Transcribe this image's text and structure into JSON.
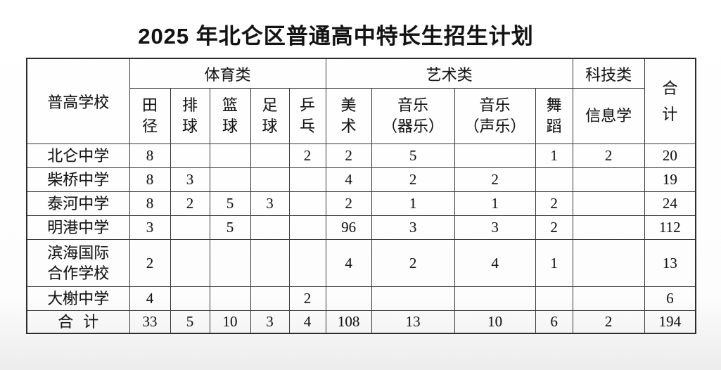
{
  "title": "2025 年北仑区普通高中特长生招生计划",
  "table": {
    "school_header": "普高学校",
    "total_header": "合\n计",
    "groups": [
      {
        "label": "体育类",
        "cols": [
          "田\n径",
          "排\n球",
          "篮\n球",
          "足\n球",
          "乒\n乓"
        ]
      },
      {
        "label": "艺术类",
        "cols": [
          "美\n术",
          "音乐\n（器乐）",
          "音乐\n（声乐）",
          "舞\n蹈"
        ]
      },
      {
        "label": "科技类",
        "cols": [
          "信息学"
        ]
      }
    ],
    "rows": [
      {
        "school": "北仑中学",
        "values": [
          "8",
          "",
          "",
          "",
          "2",
          "2",
          "5",
          "",
          "1",
          "2"
        ],
        "total": "20"
      },
      {
        "school": "柴桥中学",
        "values": [
          "8",
          "3",
          "",
          "",
          "",
          "4",
          "2",
          "2",
          "",
          ""
        ],
        "total": "19"
      },
      {
        "school": "泰河中学",
        "values": [
          "8",
          "2",
          "5",
          "3",
          "",
          "2",
          "1",
          "1",
          "2",
          ""
        ],
        "total": "24"
      },
      {
        "school": "明港中学",
        "values": [
          "3",
          "",
          "5",
          "",
          "",
          "96",
          "3",
          "3",
          "2",
          ""
        ],
        "total": "112"
      },
      {
        "school": "滨海国际\n合作学校",
        "values": [
          "2",
          "",
          "",
          "",
          "",
          "4",
          "2",
          "4",
          "1",
          ""
        ],
        "total": "13"
      },
      {
        "school": "大榭中学",
        "values": [
          "4",
          "",
          "",
          "",
          "2",
          "",
          "",
          "",
          "",
          ""
        ],
        "total": "6"
      }
    ],
    "sum_row": {
      "label": "合计",
      "values": [
        "33",
        "5",
        "10",
        "3",
        "4",
        "108",
        "13",
        "10",
        "6",
        "2"
      ],
      "total": "194"
    },
    "colors": {
      "border": "#3a3a3a",
      "text": "#161616"
    }
  }
}
